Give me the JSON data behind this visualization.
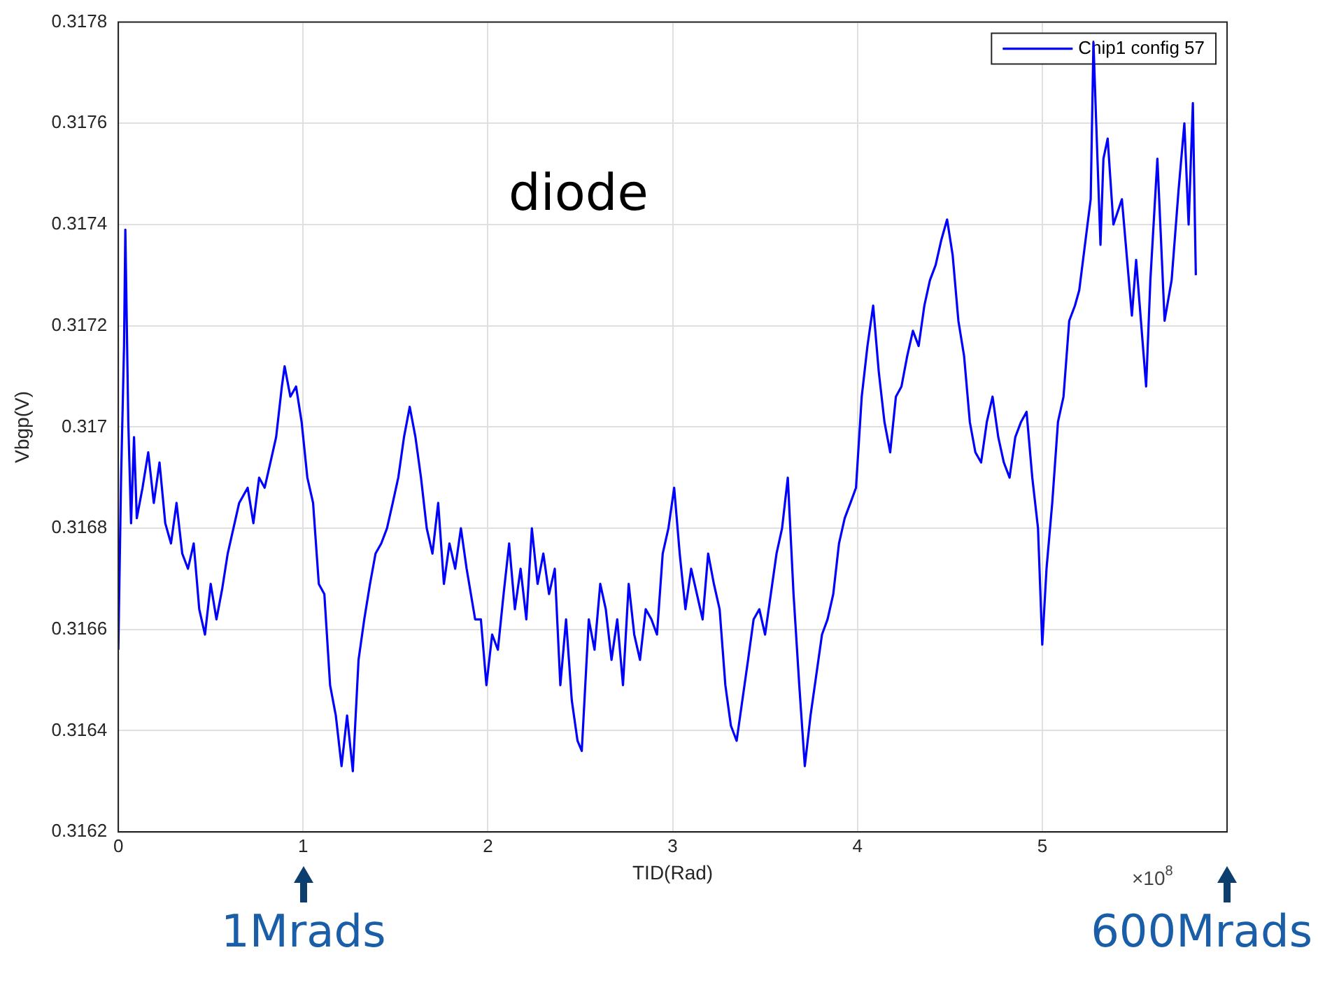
{
  "chart_data": {
    "type": "line",
    "title": "diode",
    "xlabel": "TID(Rad)",
    "ylabel": "Vbgp(V)",
    "xlim": [
      0,
      6
    ],
    "xticks": [
      0,
      1,
      2,
      3,
      4,
      5
    ],
    "ylim": [
      0.3162,
      0.3178
    ],
    "yticks": [
      0.3162,
      0.3164,
      0.3166,
      0.3168,
      0.317,
      0.3172,
      0.3174,
      0.3176,
      0.3178
    ],
    "grid": true,
    "legend": "top right",
    "marker": "none",
    "line_style": "solid",
    "annotations": [
      "1Mrads",
      "600Mrads",
      "×10$^{8}$"
    ],
    "series": [
      {
        "name": "Chip1 config 57",
        "color": "#0000ff",
        "x": [
          0,
          0.015,
          0.031,
          0.038,
          0.054,
          0.069,
          0.085,
          0.1,
          0.131,
          0.162,
          0.192,
          0.223,
          0.254,
          0.285,
          0.315,
          0.346,
          0.377,
          0.408,
          0.438,
          0.469,
          0.5,
          0.531,
          0.562,
          0.592,
          0.623,
          0.654,
          0.7,
          0.731,
          0.762,
          0.792,
          0.823,
          0.854,
          0.885,
          0.9,
          0.931,
          0.962,
          0.992,
          1.023,
          1.054,
          1.085,
          1.115,
          1.146,
          1.177,
          1.208,
          1.238,
          1.269,
          1.3,
          1.331,
          1.362,
          1.392,
          1.423,
          1.454,
          1.485,
          1.515,
          1.546,
          1.577,
          1.608,
          1.638,
          1.669,
          1.7,
          1.731,
          1.762,
          1.792,
          1.823,
          1.854,
          1.885,
          1.931,
          1.962,
          1.992,
          2.023,
          2.054,
          2.085,
          2.115,
          2.146,
          2.177,
          2.208,
          2.238,
          2.269,
          2.3,
          2.331,
          2.362,
          2.392,
          2.423,
          2.454,
          2.485,
          2.508,
          2.546,
          2.577,
          2.608,
          2.638,
          2.669,
          2.7,
          2.731,
          2.762,
          2.792,
          2.823,
          2.854,
          2.885,
          2.915,
          2.946,
          2.977,
          3.008,
          3.038,
          3.069,
          3.1,
          3.131,
          3.162,
          3.192,
          3.223,
          3.254,
          3.285,
          3.315,
          3.346,
          3.377,
          3.408,
          3.438,
          3.469,
          3.5,
          3.531,
          3.562,
          3.592,
          3.623,
          3.654,
          3.685,
          3.715,
          3.746,
          3.777,
          3.808,
          3.838,
          3.869,
          3.9,
          3.931,
          3.962,
          3.992,
          4.023,
          4.054,
          4.085,
          4.115,
          4.146,
          4.177,
          4.208,
          4.238,
          4.269,
          4.3,
          4.331,
          4.362,
          4.392,
          4.423,
          4.454,
          4.485,
          4.515,
          4.546,
          4.577,
          4.608,
          4.638,
          4.669,
          4.7,
          4.731,
          4.762,
          4.792,
          4.823,
          4.854,
          4.885,
          4.915,
          4.946,
          4.977,
          5.0,
          5.023,
          5.054,
          5.085,
          5.115,
          5.146,
          5.177,
          5.2,
          5.262,
          5.277,
          5.292,
          5.315,
          5.331,
          5.354,
          5.385,
          5.431,
          5.485,
          5.508,
          5.562,
          5.585,
          5.623,
          5.662,
          5.7,
          5.738,
          5.769,
          5.792,
          5.815,
          5.831
        ],
        "values": [
          0.31656,
          0.3169,
          0.31716,
          0.31739,
          0.31701,
          0.31681,
          0.31698,
          0.31682,
          0.31688,
          0.31695,
          0.31685,
          0.31693,
          0.31681,
          0.31677,
          0.31685,
          0.31675,
          0.31672,
          0.31677,
          0.31664,
          0.31659,
          0.31669,
          0.31662,
          0.31668,
          0.31675,
          0.3168,
          0.31685,
          0.31688,
          0.31681,
          0.3169,
          0.31688,
          0.31693,
          0.31698,
          0.31708,
          0.31712,
          0.31706,
          0.31708,
          0.31701,
          0.3169,
          0.31685,
          0.31669,
          0.31667,
          0.31649,
          0.31643,
          0.31633,
          0.31643,
          0.31632,
          0.31654,
          0.31662,
          0.31669,
          0.31675,
          0.31677,
          0.3168,
          0.31685,
          0.3169,
          0.31698,
          0.31704,
          0.31698,
          0.3169,
          0.3168,
          0.31675,
          0.31685,
          0.31669,
          0.31677,
          0.31672,
          0.3168,
          0.31672,
          0.31662,
          0.31662,
          0.31649,
          0.31659,
          0.31656,
          0.31667,
          0.31677,
          0.31664,
          0.31672,
          0.31662,
          0.3168,
          0.31669,
          0.31675,
          0.31667,
          0.31672,
          0.31649,
          0.31662,
          0.31646,
          0.31638,
          0.31636,
          0.31662,
          0.31656,
          0.31669,
          0.31664,
          0.31654,
          0.31662,
          0.31649,
          0.31669,
          0.31659,
          0.31654,
          0.31664,
          0.31662,
          0.31659,
          0.31675,
          0.3168,
          0.31688,
          0.31675,
          0.31664,
          0.31672,
          0.31667,
          0.31662,
          0.31675,
          0.31669,
          0.31664,
          0.31649,
          0.31641,
          0.31638,
          0.31646,
          0.31654,
          0.31662,
          0.31664,
          0.31659,
          0.31667,
          0.31675,
          0.3168,
          0.3169,
          0.31667,
          0.31649,
          0.31633,
          0.31643,
          0.31651,
          0.31659,
          0.31662,
          0.31667,
          0.31677,
          0.31682,
          0.31685,
          0.31688,
          0.31706,
          0.31716,
          0.31724,
          0.31711,
          0.31701,
          0.31695,
          0.31706,
          0.31708,
          0.31714,
          0.31719,
          0.31716,
          0.31724,
          0.31729,
          0.31732,
          0.31737,
          0.31741,
          0.31734,
          0.31721,
          0.31714,
          0.31701,
          0.31695,
          0.31693,
          0.31701,
          0.31706,
          0.31698,
          0.31693,
          0.3169,
          0.31698,
          0.31701,
          0.31703,
          0.3169,
          0.3168,
          0.31657,
          0.31672,
          0.31685,
          0.31701,
          0.31706,
          0.31721,
          0.31724,
          0.31727,
          0.31745,
          0.31776,
          0.3176,
          0.31736,
          0.31753,
          0.31757,
          0.3174,
          0.31745,
          0.31722,
          0.31733,
          0.31708,
          0.31729,
          0.31753,
          0.31721,
          0.31729,
          0.31747,
          0.3176,
          0.3174,
          0.31764,
          0.3173
        ]
      }
    ]
  }
}
